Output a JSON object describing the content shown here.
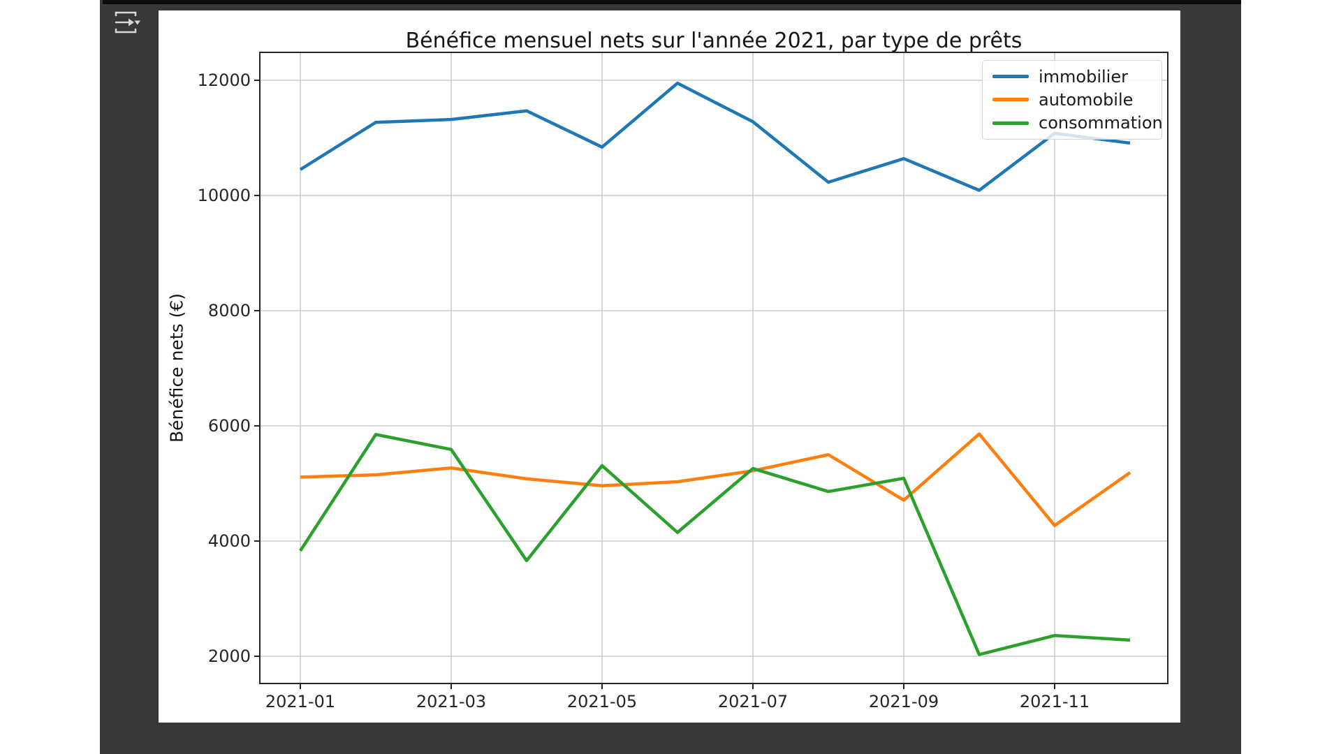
{
  "icons": {
    "toolbar_button": "send-output-dropdown-icon"
  },
  "colors": {
    "page_bg": "#ffffff",
    "panel_bg": "#383838",
    "top_strip": "#0c0c0c",
    "figure_bg": "#ffffff",
    "grid": "#cccccc",
    "spine": "#262626",
    "tick_text": "#262626",
    "icon_stroke": "#d8d8d8"
  },
  "chart_data": {
    "type": "line",
    "title": "Bénéfice mensuel nets sur l'année 2021, par type de prêts",
    "xlabel": "",
    "ylabel": "Bénéfice nets (€)",
    "x": [
      "2021-01",
      "2021-02",
      "2021-03",
      "2021-04",
      "2021-05",
      "2021-06",
      "2021-07",
      "2021-08",
      "2021-09",
      "2021-10",
      "2021-11",
      "2021-12"
    ],
    "x_tick_labels": [
      "2021-01",
      "2021-03",
      "2021-05",
      "2021-07",
      "2021-09",
      "2021-11"
    ],
    "y_ticks": [
      2000,
      4000,
      6000,
      8000,
      10000,
      12000
    ],
    "ylim": [
      1530,
      12480
    ],
    "grid": true,
    "legend_position": "upper right",
    "series": [
      {
        "name": "immobilier",
        "color": "#1f77b4",
        "values": [
          10450,
          11270,
          11320,
          11470,
          10840,
          11950,
          11280,
          10230,
          10640,
          10090,
          11080,
          10910
        ]
      },
      {
        "name": "automobile",
        "color": "#ff7f0e",
        "values": [
          5110,
          5150,
          5270,
          5080,
          4960,
          5030,
          5220,
          5500,
          4710,
          5860,
          4270,
          5190
        ]
      },
      {
        "name": "consommation",
        "color": "#2ca02c",
        "values": [
          3830,
          5850,
          5590,
          3660,
          5310,
          4150,
          5260,
          4860,
          5090,
          2030,
          2360,
          2280
        ]
      }
    ]
  }
}
